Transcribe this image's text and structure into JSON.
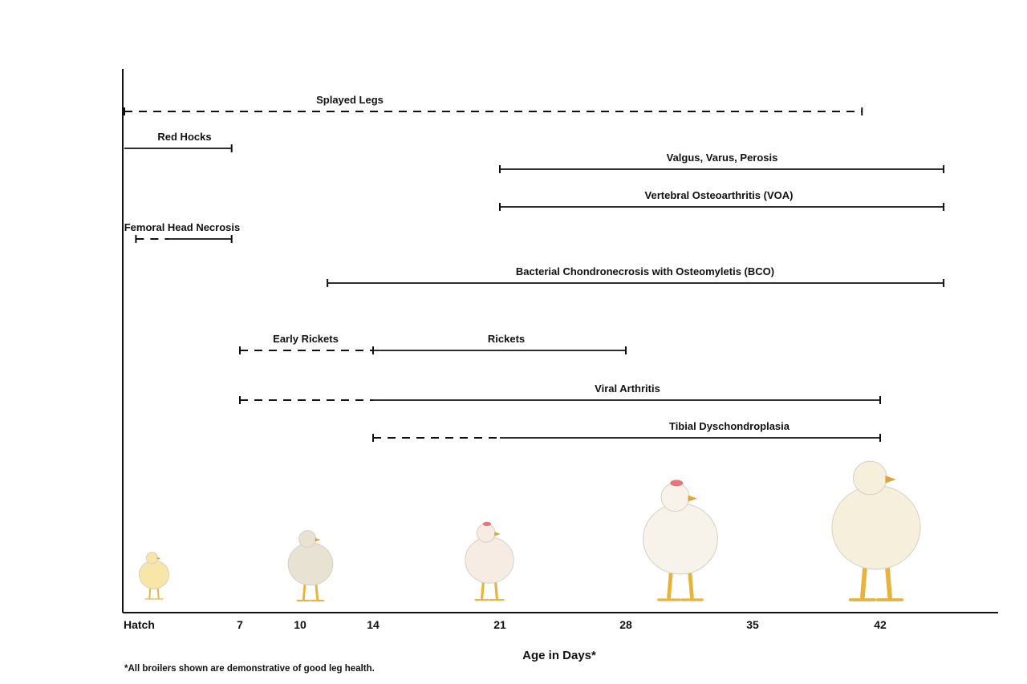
{
  "chart_data": {
    "type": "timeline",
    "title": "",
    "xlabel": "Age in Days*",
    "ylabel": "",
    "xlim": [
      0,
      47
    ],
    "ticks": [
      {
        "value": 0,
        "label": "Hatch"
      },
      {
        "value": 7,
        "label": "7"
      },
      {
        "value": 10,
        "label": "10"
      },
      {
        "value": 14,
        "label": "14"
      },
      {
        "value": 21,
        "label": "21"
      },
      {
        "value": 28,
        "label": "28"
      },
      {
        "value": 35,
        "label": "35"
      },
      {
        "value": 42,
        "label": "42"
      }
    ],
    "conditions": [
      {
        "label": "Splayed Legs",
        "segments": [
          {
            "from": 0,
            "to": 41,
            "style": "dashed"
          }
        ],
        "end_cap": true
      },
      {
        "label": "Red Hocks",
        "segments": [
          {
            "from": 0,
            "to": 6.5,
            "style": "solid"
          }
        ],
        "end_cap": true
      },
      {
        "label": "Valgus, Varus, Perosis",
        "segments": [
          {
            "from": 21,
            "to": 45.5,
            "style": "solid"
          }
        ],
        "end_cap": true
      },
      {
        "label": "Vertebral Osteoarthritis (VOA)",
        "segments": [
          {
            "from": 21,
            "to": 45.5,
            "style": "solid"
          }
        ],
        "end_cap": true
      },
      {
        "label": "Femoral Head Necrosis",
        "segments": [
          {
            "from": 0.7,
            "to": 2.7,
            "style": "dashed"
          },
          {
            "from": 2.7,
            "to": 6.5,
            "style": "solid"
          }
        ],
        "end_cap": true
      },
      {
        "label": "Bacterial Chondronecrosis with Osteomyletis (BCO)",
        "segments": [
          {
            "from": 11.5,
            "to": 45.5,
            "style": "solid"
          }
        ],
        "end_cap": true
      },
      {
        "label": "Early Rickets",
        "segments": [
          {
            "from": 7,
            "to": 14,
            "style": "dashed"
          }
        ],
        "end_cap": false
      },
      {
        "label": "Rickets",
        "segments": [
          {
            "from": 14,
            "to": 28,
            "style": "solid"
          }
        ],
        "end_cap": true
      },
      {
        "label": "Viral Arthritis",
        "segments": [
          {
            "from": 7,
            "to": 14,
            "style": "dashed"
          },
          {
            "from": 14,
            "to": 42,
            "style": "solid"
          }
        ],
        "end_cap": true
      },
      {
        "label": "Tibial Dyschondroplasia",
        "segments": [
          {
            "from": 14,
            "to": 21,
            "style": "dashed"
          },
          {
            "from": 21,
            "to": 42,
            "style": "solid"
          }
        ],
        "end_cap": true
      }
    ],
    "images": [
      {
        "age": 0,
        "subject": "chick"
      },
      {
        "age": 10,
        "subject": "young broiler"
      },
      {
        "age": 21,
        "subject": "broiler"
      },
      {
        "age": 30,
        "subject": "broiler"
      },
      {
        "age": 41,
        "subject": "broiler"
      }
    ]
  },
  "footnote": "*All broilers shown are demonstrative of good leg health."
}
